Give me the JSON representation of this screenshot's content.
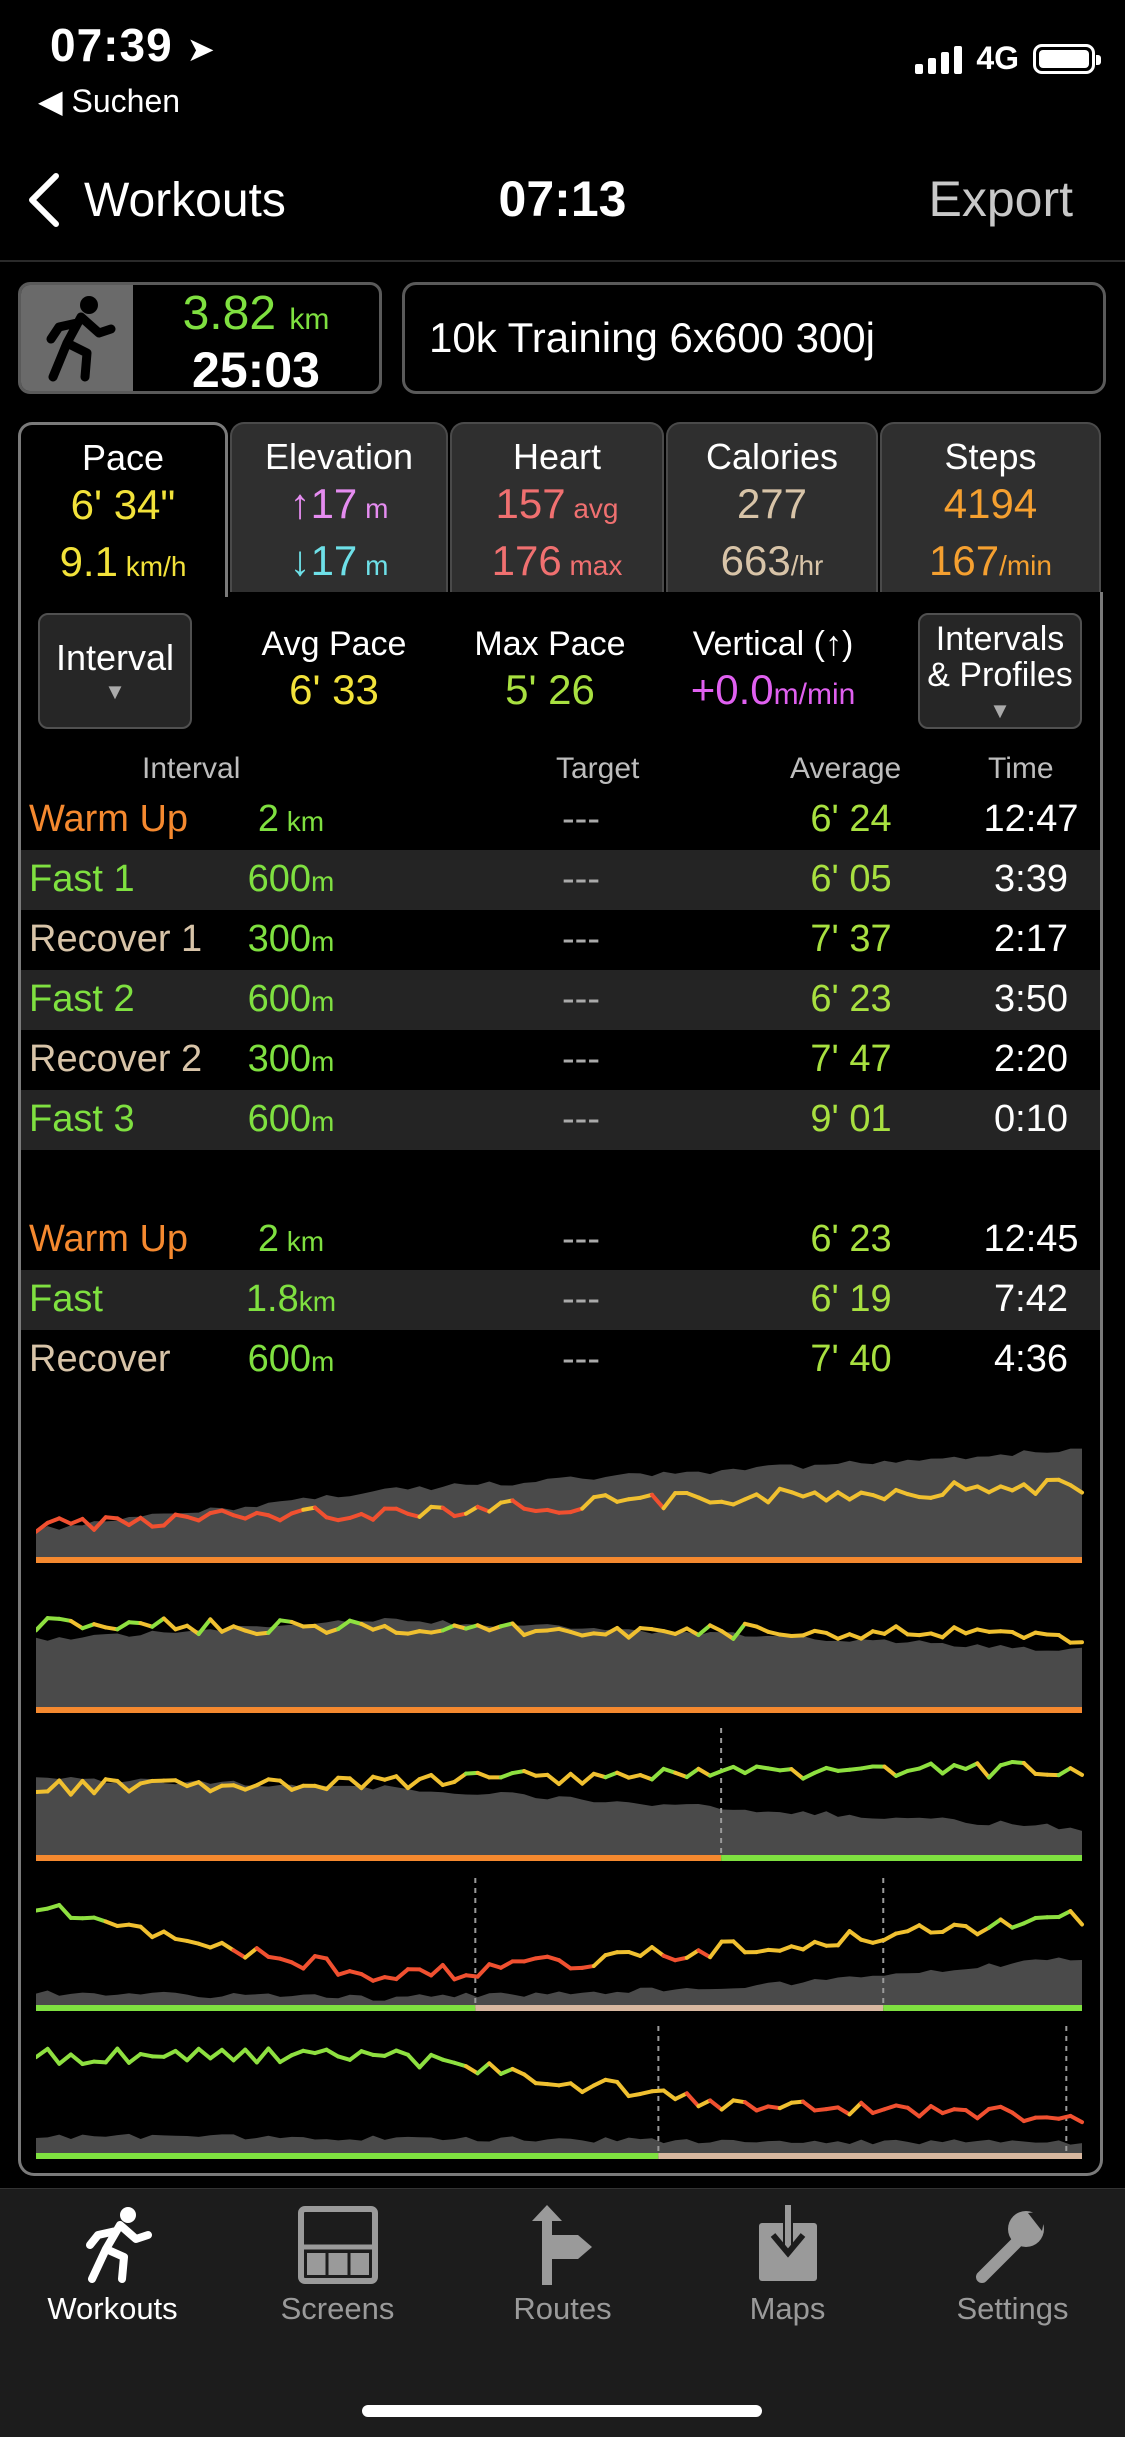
{
  "status": {
    "time": "07:39",
    "back_label": "◀ Suchen",
    "network": "4G"
  },
  "nav": {
    "back_label": "Workouts",
    "title": "07:13",
    "export_label": "Export"
  },
  "summary": {
    "distance": "3.82",
    "distance_unit": "km",
    "duration": "25:03",
    "workout_name": "10k Training 6x600 300j"
  },
  "tabs": [
    {
      "name": "Pace",
      "v1": "6' 34\"",
      "v1_unit": "",
      "v2": "9.1",
      "v2_unit": " km/h",
      "color1": "#f2e23a",
      "color2": "#f2e23a"
    },
    {
      "name": "Elevation",
      "v1": "↑17",
      "v1_unit": " m",
      "v2": "↓17",
      "v2_unit": " m",
      "color1": "#e58cf0",
      "color2": "#6ee0e8"
    },
    {
      "name": "Heart",
      "v1": "157",
      "v1_unit": " avg",
      "v2": "176",
      "v2_unit": " max",
      "color1": "#f07070",
      "color2": "#f07070"
    },
    {
      "name": "Calories",
      "v1": "277",
      "v1_unit": "",
      "v2": "663",
      "v2_unit": "/hr",
      "color1": "#d8c4a8",
      "color2": "#d8c4a8"
    },
    {
      "name": "Steps",
      "v1": "4194",
      "v1_unit": "",
      "v2": "167",
      "v2_unit": "/min",
      "color1": "#f5a030",
      "color2": "#f5a030"
    }
  ],
  "controls": {
    "interval_label": "Interval",
    "profiles_label_1": "Intervals",
    "profiles_label_2": "& Profiles",
    "caret": "▼",
    "avg_pace_label": "Avg Pace",
    "avg_pace": "6' 33",
    "max_pace_label": "Max Pace",
    "max_pace": "5' 26",
    "vertical_label": "Vertical (↑)",
    "vertical": "+0.0",
    "vertical_unit": "m/min"
  },
  "columns": {
    "interval": "Interval",
    "target": "Target",
    "average": "Average",
    "time": "Time"
  },
  "intervals": [
    {
      "name": "Warm Up",
      "dist": "2",
      "unit": " km",
      "target": "---",
      "avg": "6' 24",
      "time": "12:47",
      "color": "#f5892f"
    },
    {
      "name": "Fast 1",
      "dist": "600",
      "unit": "m",
      "target": "---",
      "avg": "6' 05",
      "time": "3:39",
      "color": "#7fe040"
    },
    {
      "name": "Recover 1",
      "dist": "300",
      "unit": "m",
      "target": "---",
      "avg": "7' 37",
      "time": "2:17",
      "color": "#d8c4a8"
    },
    {
      "name": "Fast 2",
      "dist": "600",
      "unit": "m",
      "target": "---",
      "avg": "6' 23",
      "time": "3:50",
      "color": "#7fe040"
    },
    {
      "name": "Recover 2",
      "dist": "300",
      "unit": "m",
      "target": "---",
      "avg": "7' 47",
      "time": "2:20",
      "color": "#d8c4a8"
    },
    {
      "name": "Fast 3",
      "dist": "600",
      "unit": "m",
      "target": "---",
      "avg": "9' 01",
      "time": "0:10",
      "color": "#7fe040"
    }
  ],
  "profiles": [
    {
      "name": "Warm Up",
      "dist": "2",
      "unit": " km",
      "target": "---",
      "avg": "6' 23",
      "time": "12:45",
      "color": "#f5892f"
    },
    {
      "name": "Fast",
      "dist": "1.8",
      "unit": "km",
      "target": "---",
      "avg": "6' 19",
      "time": "7:42",
      "color": "#7fe040"
    },
    {
      "name": "Recover",
      "dist": "600",
      "unit": "m",
      "target": "---",
      "avg": "7' 40",
      "time": "4:36",
      "color": "#d8c4a8"
    }
  ],
  "tabbar": [
    {
      "label": "Workouts",
      "icon": "running-icon",
      "active": true
    },
    {
      "label": "Screens",
      "icon": "screens-icon",
      "active": false
    },
    {
      "label": "Routes",
      "icon": "route-sign-icon",
      "active": false
    },
    {
      "label": "Maps",
      "icon": "map-download-icon",
      "active": false
    },
    {
      "label": "Settings",
      "icon": "wrench-icon",
      "active": false
    }
  ]
}
